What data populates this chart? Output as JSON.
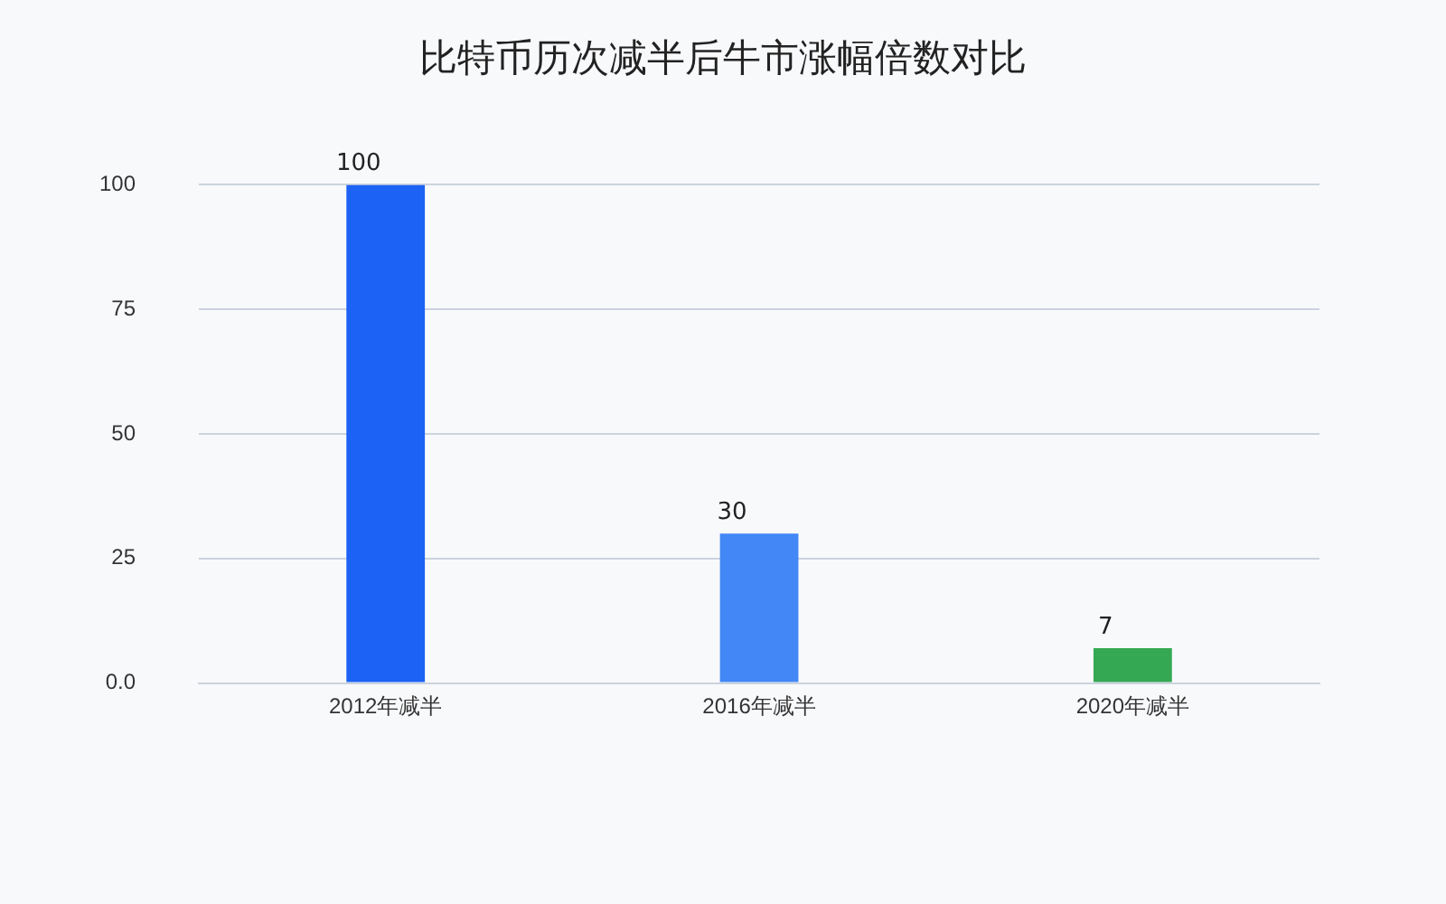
{
  "chart_data": {
    "type": "bar",
    "title": "比特币历次减半后牛市涨幅倍数对比",
    "categories": [
      "2012年减半",
      "2016年减半",
      "2020年减半"
    ],
    "values": [
      100,
      30,
      7
    ],
    "colors": [
      "#1c62f4",
      "#4287f5",
      "#34a853"
    ],
    "ylim": [
      0,
      100
    ],
    "yticks": [
      {
        "value": 0,
        "label": "0.0"
      },
      25,
      50,
      75,
      100
    ],
    "grid": "y",
    "legend": false,
    "data_labels": true
  }
}
